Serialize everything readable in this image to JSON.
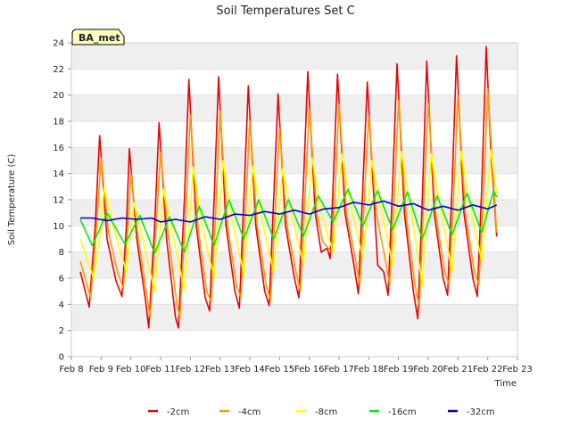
{
  "chart_data": {
    "type": "line",
    "title": "Soil Temperatures Set C",
    "xlabel": "Time",
    "ylabel": "Soil Temperature (C)",
    "station_label": "BA_met",
    "xlim": [
      8,
      23
    ],
    "ylim": [
      0,
      24
    ],
    "xticks": [
      {
        "value": 8,
        "label": "Feb 8"
      },
      {
        "value": 9,
        "label": "Feb 9"
      },
      {
        "value": 10,
        "label": "Feb 10"
      },
      {
        "value": 11,
        "label": "Feb 11"
      },
      {
        "value": 12,
        "label": "Feb 12"
      },
      {
        "value": 13,
        "label": "Feb 13"
      },
      {
        "value": 14,
        "label": "Feb 14"
      },
      {
        "value": 15,
        "label": "Feb 15"
      },
      {
        "value": 16,
        "label": "Feb 16"
      },
      {
        "value": 17,
        "label": "Feb 17"
      },
      {
        "value": 18,
        "label": "Feb 18"
      },
      {
        "value": 19,
        "label": "Feb 19"
      },
      {
        "value": 20,
        "label": "Feb 20"
      },
      {
        "value": 21,
        "label": "Feb 21"
      },
      {
        "value": 22,
        "label": "Feb 22"
      },
      {
        "value": 23,
        "label": "Feb 23"
      }
    ],
    "yticks": [
      0,
      2,
      4,
      6,
      8,
      10,
      12,
      14,
      16,
      18,
      20,
      22,
      24
    ],
    "grid": "horizontal-bands",
    "legend": "bottom",
    "series": [
      {
        "name": "-2cm",
        "color": "#ee0000",
        "points": [
          [
            8.3,
            6.5
          ],
          [
            8.6,
            3.8
          ],
          [
            8.8,
            10.0
          ],
          [
            8.95,
            16.9
          ],
          [
            9.2,
            9.0
          ],
          [
            9.5,
            5.8
          ],
          [
            9.7,
            4.6
          ],
          [
            9.85,
            10.0
          ],
          [
            9.95,
            15.9
          ],
          [
            10.2,
            9.0
          ],
          [
            10.5,
            4.2
          ],
          [
            10.6,
            2.2
          ],
          [
            10.8,
            10.0
          ],
          [
            10.95,
            17.9
          ],
          [
            11.2,
            9.0
          ],
          [
            11.5,
            3.0
          ],
          [
            11.6,
            2.2
          ],
          [
            11.8,
            12.0
          ],
          [
            11.95,
            21.2
          ],
          [
            12.2,
            10.0
          ],
          [
            12.5,
            4.5
          ],
          [
            12.65,
            3.5
          ],
          [
            12.8,
            12.0
          ],
          [
            12.95,
            21.4
          ],
          [
            13.2,
            10.0
          ],
          [
            13.5,
            5.0
          ],
          [
            13.65,
            3.7
          ],
          [
            13.8,
            12.0
          ],
          [
            13.95,
            20.7
          ],
          [
            14.2,
            10.0
          ],
          [
            14.5,
            5.0
          ],
          [
            14.65,
            3.9
          ],
          [
            14.8,
            12.0
          ],
          [
            14.95,
            20.1
          ],
          [
            15.2,
            10.0
          ],
          [
            15.5,
            6.0
          ],
          [
            15.65,
            4.5
          ],
          [
            15.8,
            13.0
          ],
          [
            15.95,
            21.8
          ],
          [
            16.2,
            11.0
          ],
          [
            16.4,
            8.0
          ],
          [
            16.6,
            8.3
          ],
          [
            16.7,
            7.5
          ],
          [
            16.8,
            13.0
          ],
          [
            16.95,
            21.6
          ],
          [
            17.2,
            11.0
          ],
          [
            17.5,
            7.0
          ],
          [
            17.65,
            4.8
          ],
          [
            17.8,
            13.0
          ],
          [
            17.95,
            21.0
          ],
          [
            18.2,
            11.0
          ],
          [
            18.3,
            7.0
          ],
          [
            18.5,
            6.5
          ],
          [
            18.65,
            4.7
          ],
          [
            18.8,
            13.0
          ],
          [
            18.95,
            22.4
          ],
          [
            19.2,
            11.0
          ],
          [
            19.5,
            5.0
          ],
          [
            19.65,
            2.9
          ],
          [
            19.8,
            12.0
          ],
          [
            19.95,
            22.6
          ],
          [
            20.2,
            11.0
          ],
          [
            20.5,
            6.0
          ],
          [
            20.65,
            4.7
          ],
          [
            20.8,
            13.0
          ],
          [
            20.95,
            23.0
          ],
          [
            21.2,
            11.0
          ],
          [
            21.5,
            6.0
          ],
          [
            21.65,
            4.6
          ],
          [
            21.8,
            13.0
          ],
          [
            21.95,
            23.7
          ],
          [
            22.1,
            16.0
          ],
          [
            22.3,
            9.2
          ]
        ]
      },
      {
        "name": "-4cm",
        "color": "#ff9900",
        "points": [
          [
            8.3,
            7.3
          ],
          [
            8.65,
            4.5
          ],
          [
            8.85,
            10.0
          ],
          [
            9.0,
            15.2
          ],
          [
            9.25,
            9.5
          ],
          [
            9.55,
            6.5
          ],
          [
            9.75,
            5.2
          ],
          [
            9.9,
            10.0
          ],
          [
            10.0,
            14.0
          ],
          [
            10.25,
            9.0
          ],
          [
            10.55,
            4.5
          ],
          [
            10.65,
            3.0
          ],
          [
            10.85,
            10.0
          ],
          [
            11.0,
            15.6
          ],
          [
            11.25,
            9.5
          ],
          [
            11.55,
            4.0
          ],
          [
            11.65,
            3.0
          ],
          [
            11.85,
            11.0
          ],
          [
            12.0,
            18.5
          ],
          [
            12.25,
            10.0
          ],
          [
            12.55,
            5.0
          ],
          [
            12.7,
            4.2
          ],
          [
            12.85,
            11.0
          ],
          [
            13.0,
            18.8
          ],
          [
            13.25,
            10.0
          ],
          [
            13.55,
            5.5
          ],
          [
            13.7,
            4.5
          ],
          [
            13.85,
            11.0
          ],
          [
            14.0,
            18.0
          ],
          [
            14.25,
            10.0
          ],
          [
            14.55,
            5.5
          ],
          [
            14.7,
            4.3
          ],
          [
            14.85,
            11.0
          ],
          [
            15.0,
            17.5
          ],
          [
            15.25,
            10.0
          ],
          [
            15.55,
            6.5
          ],
          [
            15.7,
            5.0
          ],
          [
            15.85,
            12.0
          ],
          [
            16.0,
            19.0
          ],
          [
            16.25,
            11.0
          ],
          [
            16.45,
            8.8
          ],
          [
            16.75,
            8.0
          ],
          [
            16.85,
            12.0
          ],
          [
            17.0,
            19.3
          ],
          [
            17.25,
            11.0
          ],
          [
            17.55,
            7.5
          ],
          [
            17.7,
            5.5
          ],
          [
            17.85,
            12.0
          ],
          [
            18.0,
            18.4
          ],
          [
            18.25,
            11.0
          ],
          [
            18.55,
            7.5
          ],
          [
            18.7,
            5.5
          ],
          [
            18.85,
            12.0
          ],
          [
            19.0,
            19.6
          ],
          [
            19.25,
            11.0
          ],
          [
            19.55,
            5.5
          ],
          [
            19.7,
            3.8
          ],
          [
            19.85,
            12.0
          ],
          [
            20.0,
            19.4
          ],
          [
            20.25,
            11.0
          ],
          [
            20.55,
            6.5
          ],
          [
            20.7,
            5.5
          ],
          [
            20.85,
            12.0
          ],
          [
            21.0,
            20.0
          ],
          [
            21.25,
            11.0
          ],
          [
            21.55,
            6.5
          ],
          [
            21.7,
            5.5
          ],
          [
            21.85,
            12.0
          ],
          [
            22.0,
            20.5
          ],
          [
            22.15,
            15.0
          ],
          [
            22.3,
            9.5
          ]
        ]
      },
      {
        "name": "-8cm",
        "color": "#ffff00",
        "points": [
          [
            8.3,
            9.0
          ],
          [
            8.75,
            6.0
          ],
          [
            9.0,
            10.0
          ],
          [
            9.1,
            13.0
          ],
          [
            9.4,
            10.0
          ],
          [
            9.85,
            6.5
          ],
          [
            10.1,
            11.8
          ],
          [
            10.4,
            9.0
          ],
          [
            10.8,
            5.0
          ],
          [
            11.1,
            12.8
          ],
          [
            11.4,
            9.5
          ],
          [
            11.8,
            5.0
          ],
          [
            12.1,
            14.5
          ],
          [
            12.4,
            10.0
          ],
          [
            12.8,
            6.0
          ],
          [
            13.1,
            15.0
          ],
          [
            13.4,
            10.5
          ],
          [
            13.8,
            6.3
          ],
          [
            14.1,
            14.6
          ],
          [
            14.4,
            10.5
          ],
          [
            14.8,
            6.5
          ],
          [
            15.1,
            14.4
          ],
          [
            15.4,
            11.0
          ],
          [
            15.8,
            7.0
          ],
          [
            16.1,
            15.2
          ],
          [
            16.4,
            11.0
          ],
          [
            16.8,
            8.0
          ],
          [
            17.1,
            15.5
          ],
          [
            17.4,
            11.5
          ],
          [
            17.8,
            7.5
          ],
          [
            18.1,
            15.0
          ],
          [
            18.4,
            11.5
          ],
          [
            18.8,
            7.0
          ],
          [
            19.1,
            15.7
          ],
          [
            19.4,
            11.5
          ],
          [
            19.8,
            5.5
          ],
          [
            20.1,
            15.5
          ],
          [
            20.4,
            11.5
          ],
          [
            20.8,
            6.5
          ],
          [
            21.1,
            15.7
          ],
          [
            21.4,
            11.5
          ],
          [
            21.8,
            7.3
          ],
          [
            22.1,
            15.8
          ],
          [
            22.3,
            12.5
          ]
        ]
      },
      {
        "name": "-16cm",
        "color": "#00ee00",
        "points": [
          [
            8.3,
            10.5
          ],
          [
            8.7,
            8.5
          ],
          [
            9.2,
            11.0
          ],
          [
            9.8,
            8.6
          ],
          [
            10.3,
            10.8
          ],
          [
            10.8,
            7.9
          ],
          [
            11.3,
            10.7
          ],
          [
            11.8,
            8.0
          ],
          [
            12.3,
            11.5
          ],
          [
            12.8,
            8.5
          ],
          [
            13.3,
            12.0
          ],
          [
            13.8,
            9.0
          ],
          [
            14.3,
            12.0
          ],
          [
            14.8,
            9.0
          ],
          [
            15.3,
            12.0
          ],
          [
            15.8,
            9.2
          ],
          [
            16.3,
            12.3
          ],
          [
            16.8,
            10.3
          ],
          [
            17.3,
            12.8
          ],
          [
            17.8,
            10.0
          ],
          [
            18.3,
            12.7
          ],
          [
            18.8,
            9.7
          ],
          [
            19.3,
            12.6
          ],
          [
            19.8,
            9.0
          ],
          [
            20.3,
            12.3
          ],
          [
            20.8,
            9.3
          ],
          [
            21.3,
            12.5
          ],
          [
            21.8,
            9.5
          ],
          [
            22.2,
            12.7
          ],
          [
            22.3,
            12.2
          ]
        ]
      },
      {
        "name": "-32cm",
        "color": "#0000cc",
        "points": [
          [
            8.3,
            10.6
          ],
          [
            8.7,
            10.6
          ],
          [
            9.2,
            10.4
          ],
          [
            9.7,
            10.6
          ],
          [
            10.2,
            10.5
          ],
          [
            10.7,
            10.6
          ],
          [
            11.0,
            10.3
          ],
          [
            11.5,
            10.5
          ],
          [
            12.0,
            10.3
          ],
          [
            12.5,
            10.7
          ],
          [
            13.0,
            10.5
          ],
          [
            13.5,
            10.9
          ],
          [
            14.0,
            10.8
          ],
          [
            14.5,
            11.1
          ],
          [
            15.0,
            10.9
          ],
          [
            15.5,
            11.2
          ],
          [
            16.0,
            10.9
          ],
          [
            16.5,
            11.3
          ],
          [
            17.0,
            11.4
          ],
          [
            17.5,
            11.8
          ],
          [
            18.0,
            11.6
          ],
          [
            18.5,
            11.9
          ],
          [
            19.0,
            11.5
          ],
          [
            19.5,
            11.7
          ],
          [
            20.0,
            11.2
          ],
          [
            20.5,
            11.5
          ],
          [
            21.0,
            11.2
          ],
          [
            21.5,
            11.6
          ],
          [
            22.0,
            11.3
          ],
          [
            22.3,
            11.6
          ]
        ]
      }
    ]
  }
}
